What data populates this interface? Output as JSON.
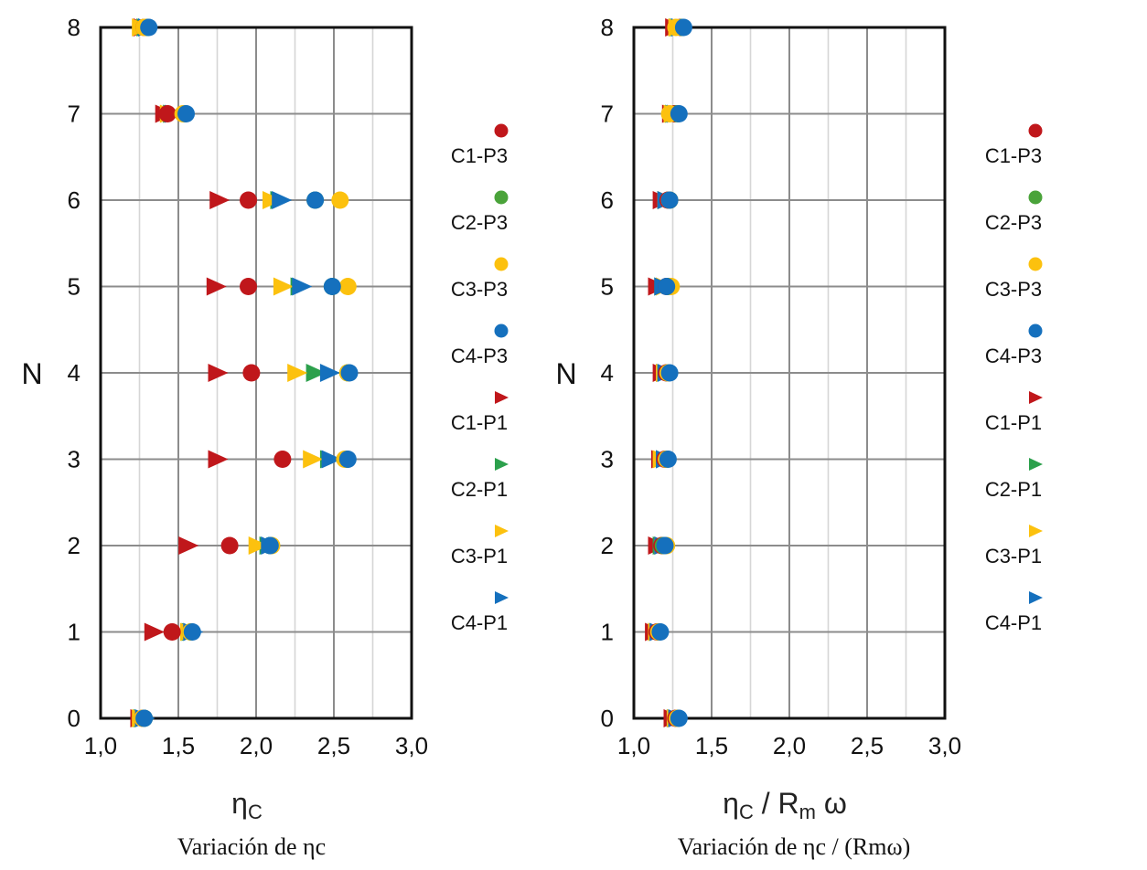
{
  "chart_data": [
    {
      "type": "scatter",
      "title": "",
      "caption": "Variación de ηc",
      "xlabel_main": "η",
      "xlabel_sub": "C",
      "ylabel": "N",
      "xlim": [
        1.0,
        3.0
      ],
      "ylim": [
        0,
        8
      ],
      "x_ticks": [
        "1,0",
        "1,5",
        "2,0",
        "2,5",
        "3,0"
      ],
      "y_ticks": [
        "0",
        "1",
        "2",
        "3",
        "4",
        "5",
        "6",
        "7",
        "8"
      ],
      "grid": true,
      "legend_position": "right",
      "series": [
        {
          "name": "C1-P3",
          "marker": "circle",
          "color": "#c0171b",
          "points": [
            [
              1.27,
              0
            ],
            [
              1.46,
              1
            ],
            [
              1.83,
              2
            ],
            [
              2.17,
              3
            ],
            [
              1.97,
              4
            ],
            [
              1.95,
              5
            ],
            [
              1.95,
              6
            ],
            [
              1.43,
              7
            ],
            [
              1.28,
              8
            ]
          ]
        },
        {
          "name": "C2-P3",
          "marker": "circle",
          "color": "#4aa33a",
          "points": [
            [
              1.28,
              0
            ],
            [
              1.58,
              1
            ],
            [
              2.09,
              2
            ],
            [
              2.58,
              3
            ],
            [
              2.59,
              4
            ],
            [
              2.49,
              5
            ],
            [
              2.38,
              6
            ],
            [
              1.54,
              7
            ],
            [
              1.3,
              8
            ]
          ]
        },
        {
          "name": "C3-P3",
          "marker": "circle",
          "color": "#fcc10e",
          "points": [
            [
              1.27,
              0
            ],
            [
              1.58,
              1
            ],
            [
              2.1,
              2
            ],
            [
              2.57,
              3
            ],
            [
              2.59,
              4
            ],
            [
              2.59,
              5
            ],
            [
              2.54,
              6
            ],
            [
              1.53,
              7
            ],
            [
              1.28,
              8
            ]
          ]
        },
        {
          "name": "C4-P3",
          "marker": "circle",
          "color": "#1570bd",
          "points": [
            [
              1.28,
              0
            ],
            [
              1.59,
              1
            ],
            [
              2.09,
              2
            ],
            [
              2.59,
              3
            ],
            [
              2.6,
              4
            ],
            [
              2.49,
              5
            ],
            [
              2.38,
              6
            ],
            [
              1.55,
              7
            ],
            [
              1.31,
              8
            ]
          ]
        },
        {
          "name": "C1-P1",
          "marker": "triangle-right",
          "color": "#c0171b",
          "points": [
            [
              1.25,
              0
            ],
            [
              1.34,
              1
            ],
            [
              1.56,
              2
            ],
            [
              1.75,
              3
            ],
            [
              1.75,
              4
            ],
            [
              1.74,
              5
            ],
            [
              1.76,
              6
            ],
            [
              1.41,
              7
            ],
            [
              1.27,
              8
            ]
          ]
        },
        {
          "name": "C2-P1",
          "marker": "triangle-right",
          "color": "#2ca04c",
          "points": [
            [
              1.27,
              0
            ],
            [
              1.58,
              1
            ],
            [
              2.08,
              2
            ],
            [
              2.47,
              3
            ],
            [
              2.38,
              4
            ],
            [
              2.28,
              5
            ],
            [
              2.15,
              6
            ],
            [
              1.46,
              7
            ],
            [
              1.29,
              8
            ]
          ]
        },
        {
          "name": "C3-P1",
          "marker": "triangle-right",
          "color": "#fcc10e",
          "points": [
            [
              1.26,
              0
            ],
            [
              1.57,
              1
            ],
            [
              2.01,
              2
            ],
            [
              2.36,
              3
            ],
            [
              2.26,
              4
            ],
            [
              2.17,
              5
            ],
            [
              2.1,
              6
            ],
            [
              1.44,
              7
            ],
            [
              1.26,
              8
            ]
          ]
        },
        {
          "name": "C4-P1",
          "marker": "triangle-right",
          "color": "#1570bd",
          "points": [
            [
              1.28,
              0
            ],
            [
              1.59,
              1
            ],
            [
              2.09,
              2
            ],
            [
              2.48,
              3
            ],
            [
              2.47,
              4
            ],
            [
              2.29,
              5
            ],
            [
              2.16,
              6
            ],
            [
              1.47,
              7
            ],
            [
              1.3,
              8
            ]
          ]
        }
      ]
    },
    {
      "type": "scatter",
      "title": "",
      "caption": "Variación de ηc / (Rmω)",
      "xlabel_main": "η",
      "xlabel_sub": "C",
      "xlabel_rest": " / R",
      "xlabel_sub2": "m",
      "xlabel_tail": " ω",
      "ylabel": "N",
      "xlim": [
        1.0,
        3.0
      ],
      "ylim": [
        0,
        8
      ],
      "x_ticks": [
        "1,0",
        "1,5",
        "2,0",
        "2,5",
        "3,0"
      ],
      "y_ticks": [
        "0",
        "1",
        "2",
        "3",
        "4",
        "5",
        "6",
        "7",
        "8"
      ],
      "grid": true,
      "legend_position": "right",
      "series": [
        {
          "name": "C1-P3",
          "marker": "circle",
          "color": "#c0171b",
          "points": [
            [
              1.27,
              0
            ],
            [
              1.15,
              1
            ],
            [
              1.18,
              2
            ],
            [
              1.2,
              3
            ],
            [
              1.21,
              4
            ],
            [
              1.21,
              5
            ],
            [
              1.22,
              6
            ],
            [
              1.26,
              7
            ],
            [
              1.3,
              8
            ]
          ]
        },
        {
          "name": "C2-P3",
          "marker": "circle",
          "color": "#4aa33a",
          "points": [
            [
              1.28,
              0
            ],
            [
              1.16,
              1
            ],
            [
              1.19,
              2
            ],
            [
              1.21,
              3
            ],
            [
              1.22,
              4
            ],
            [
              1.22,
              5
            ],
            [
              1.23,
              6
            ],
            [
              1.28,
              7
            ],
            [
              1.31,
              8
            ]
          ]
        },
        {
          "name": "C3-P3",
          "marker": "circle",
          "color": "#fcc10e",
          "points": [
            [
              1.28,
              0
            ],
            [
              1.16,
              1
            ],
            [
              1.21,
              2
            ],
            [
              1.21,
              3
            ],
            [
              1.22,
              4
            ],
            [
              1.24,
              5
            ],
            [
              1.23,
              6
            ],
            [
              1.23,
              7
            ],
            [
              1.27,
              8
            ]
          ]
        },
        {
          "name": "C4-P3",
          "marker": "circle",
          "color": "#1570bd",
          "points": [
            [
              1.29,
              0
            ],
            [
              1.17,
              1
            ],
            [
              1.2,
              2
            ],
            [
              1.22,
              3
            ],
            [
              1.23,
              4
            ],
            [
              1.21,
              5
            ],
            [
              1.23,
              6
            ],
            [
              1.29,
              7
            ],
            [
              1.32,
              8
            ]
          ]
        },
        {
          "name": "C1-P1",
          "marker": "triangle-right",
          "color": "#c0171b",
          "points": [
            [
              1.25,
              0
            ],
            [
              1.13,
              1
            ],
            [
              1.15,
              2
            ],
            [
              1.17,
              3
            ],
            [
              1.18,
              4
            ],
            [
              1.15,
              5
            ],
            [
              1.18,
              6
            ],
            [
              1.24,
              7
            ],
            [
              1.26,
              8
            ]
          ]
        },
        {
          "name": "C2-P1",
          "marker": "triangle-right",
          "color": "#2ca04c",
          "points": [
            [
              1.27,
              0
            ],
            [
              1.15,
              1
            ],
            [
              1.18,
              2
            ],
            [
              1.2,
              3
            ],
            [
              1.2,
              4
            ],
            [
              1.19,
              5
            ],
            [
              1.21,
              6
            ],
            [
              1.26,
              7
            ],
            [
              1.29,
              8
            ]
          ]
        },
        {
          "name": "C3-P1",
          "marker": "triangle-right",
          "color": "#fcc10e",
          "points": [
            [
              1.27,
              0
            ],
            [
              1.15,
              1
            ],
            [
              1.19,
              2
            ],
            [
              1.18,
              3
            ],
            [
              1.2,
              4
            ],
            [
              1.2,
              5
            ],
            [
              1.21,
              6
            ],
            [
              1.25,
              7
            ],
            [
              1.28,
              8
            ]
          ]
        },
        {
          "name": "C4-P1",
          "marker": "triangle-right",
          "color": "#1570bd",
          "points": [
            [
              1.28,
              0
            ],
            [
              1.16,
              1
            ],
            [
              1.19,
              2
            ],
            [
              1.2,
              3
            ],
            [
              1.21,
              4
            ],
            [
              1.19,
              5
            ],
            [
              1.21,
              6
            ],
            [
              1.27,
              7
            ],
            [
              1.3,
              8
            ]
          ]
        }
      ]
    }
  ]
}
